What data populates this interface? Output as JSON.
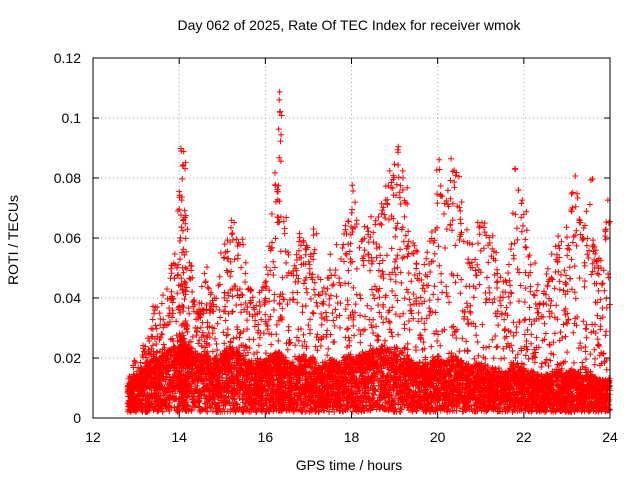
{
  "chart_data": {
    "type": "scatter",
    "title": "Day 062 of 2025, Rate Of TEC Index for receiver wmok",
    "xlabel": "GPS time / hours",
    "ylabel": "ROTI / TECUs",
    "xlim": [
      12,
      24
    ],
    "ylim": [
      0,
      0.12
    ],
    "x_ticks": [
      "12",
      "14",
      "16",
      "18",
      "20",
      "22",
      "24"
    ],
    "y_ticks": [
      "0",
      "0.02",
      "0.04",
      "0.06",
      "0.08",
      "0.1",
      "0.12"
    ],
    "grid": true,
    "marker": "plus",
    "color": "#ff0000",
    "series": [
      {
        "x": [
          12.8,
          12.9,
          13.0,
          13.1,
          13.2,
          13.3,
          13.4,
          13.5,
          13.6,
          13.7,
          13.8,
          13.9,
          14.0,
          14.05,
          14.1,
          14.15,
          14.2,
          14.3,
          14.4,
          14.5,
          14.6,
          14.7,
          14.8,
          14.9,
          15.0,
          15.1,
          15.2,
          15.3,
          15.4,
          15.5,
          15.6,
          15.7,
          15.8,
          15.9,
          16.0,
          16.1,
          16.2,
          16.3,
          16.35,
          16.4,
          16.5,
          16.6,
          16.7,
          16.8,
          16.9,
          17.0,
          17.1,
          17.2,
          17.3,
          17.4,
          17.5,
          17.6,
          17.7,
          17.8,
          17.9,
          18.0,
          18.1,
          18.2,
          18.3,
          18.4,
          18.5,
          18.6,
          18.7,
          18.8,
          18.9,
          19.0,
          19.1,
          19.2,
          19.3,
          19.4,
          19.5,
          19.6,
          19.7,
          19.8,
          19.9,
          20.0,
          20.1,
          20.2,
          20.3,
          20.4,
          20.5,
          20.6,
          20.7,
          20.8,
          20.9,
          21.0,
          21.1,
          21.2,
          21.3,
          21.4,
          21.5,
          21.6,
          21.7,
          21.8,
          21.9,
          22.0,
          22.1,
          22.2,
          22.3,
          22.4,
          22.5,
          22.6,
          22.7,
          22.8,
          22.9,
          23.0,
          23.1,
          23.2,
          23.3,
          23.4,
          23.5,
          23.6,
          23.7,
          23.8,
          23.9,
          24.0
        ],
        "y_max": [
          0.016,
          0.018,
          0.02,
          0.024,
          0.026,
          0.03,
          0.04,
          0.038,
          0.042,
          0.045,
          0.05,
          0.055,
          0.078,
          0.095,
          0.089,
          0.07,
          0.056,
          0.048,
          0.04,
          0.044,
          0.052,
          0.045,
          0.04,
          0.046,
          0.06,
          0.058,
          0.07,
          0.064,
          0.06,
          0.054,
          0.045,
          0.042,
          0.04,
          0.044,
          0.05,
          0.06,
          0.078,
          0.111,
          0.104,
          0.07,
          0.058,
          0.05,
          0.056,
          0.062,
          0.06,
          0.056,
          0.064,
          0.05,
          0.044,
          0.048,
          0.056,
          0.058,
          0.054,
          0.062,
          0.07,
          0.078,
          0.068,
          0.062,
          0.066,
          0.064,
          0.07,
          0.074,
          0.08,
          0.076,
          0.085,
          0.093,
          0.088,
          0.078,
          0.068,
          0.062,
          0.058,
          0.05,
          0.056,
          0.06,
          0.066,
          0.087,
          0.078,
          0.072,
          0.088,
          0.084,
          0.074,
          0.066,
          0.06,
          0.058,
          0.07,
          0.072,
          0.068,
          0.062,
          0.056,
          0.05,
          0.046,
          0.052,
          0.064,
          0.085,
          0.074,
          0.07,
          0.058,
          0.052,
          0.046,
          0.044,
          0.05,
          0.056,
          0.06,
          0.062,
          0.048,
          0.066,
          0.079,
          0.081,
          0.066,
          0.06,
          0.082,
          0.064,
          0.058,
          0.054,
          0.072,
          0.076
        ],
        "y_typical": [
          0.008,
          0.009,
          0.01,
          0.011,
          0.012,
          0.013,
          0.015,
          0.014,
          0.015,
          0.016,
          0.017,
          0.018,
          0.02,
          0.021,
          0.02,
          0.019,
          0.018,
          0.017,
          0.016,
          0.015,
          0.016,
          0.015,
          0.014,
          0.015,
          0.016,
          0.017,
          0.018,
          0.017,
          0.016,
          0.015,
          0.014,
          0.013,
          0.013,
          0.014,
          0.014,
          0.015,
          0.016,
          0.016,
          0.016,
          0.015,
          0.014,
          0.013,
          0.014,
          0.015,
          0.015,
          0.014,
          0.015,
          0.013,
          0.012,
          0.013,
          0.014,
          0.014,
          0.013,
          0.014,
          0.015,
          0.016,
          0.015,
          0.015,
          0.016,
          0.016,
          0.017,
          0.017,
          0.018,
          0.017,
          0.017,
          0.018,
          0.017,
          0.016,
          0.015,
          0.014,
          0.013,
          0.012,
          0.013,
          0.013,
          0.014,
          0.015,
          0.014,
          0.014,
          0.015,
          0.015,
          0.014,
          0.013,
          0.012,
          0.012,
          0.013,
          0.013,
          0.013,
          0.012,
          0.012,
          0.011,
          0.011,
          0.011,
          0.012,
          0.013,
          0.012,
          0.012,
          0.011,
          0.011,
          0.01,
          0.01,
          0.01,
          0.011,
          0.011,
          0.011,
          0.01,
          0.011,
          0.011,
          0.011,
          0.01,
          0.01,
          0.011,
          0.01,
          0.009,
          0.009,
          0.009,
          0.009
        ]
      }
    ]
  }
}
